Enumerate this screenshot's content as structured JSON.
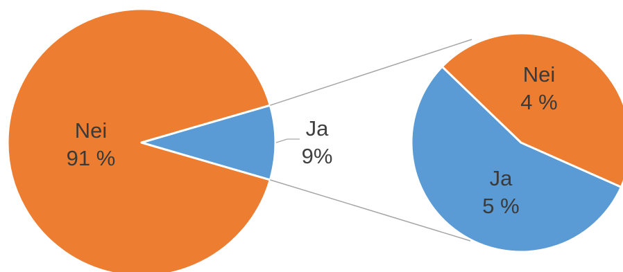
{
  "chart_data": {
    "type": "pie",
    "subtype": "pie-of-pie",
    "main_pie": {
      "slices": [
        {
          "label_name": "Nei",
          "label_value": "91 %",
          "value": 91,
          "color": "#ED7D31"
        },
        {
          "label_name": "Ja",
          "label_value": "9%",
          "value": 9,
          "color": "#5B9BD5",
          "exploded_to_secondary": true
        }
      ]
    },
    "secondary_pie": {
      "slices": [
        {
          "label_name": "Nei",
          "label_value": "4 %",
          "value": 4,
          "color": "#ED7D31"
        },
        {
          "label_name": "Ja",
          "label_value": "5 %",
          "value": 5,
          "color": "#5B9BD5"
        }
      ]
    },
    "legend": "none",
    "title": ""
  }
}
